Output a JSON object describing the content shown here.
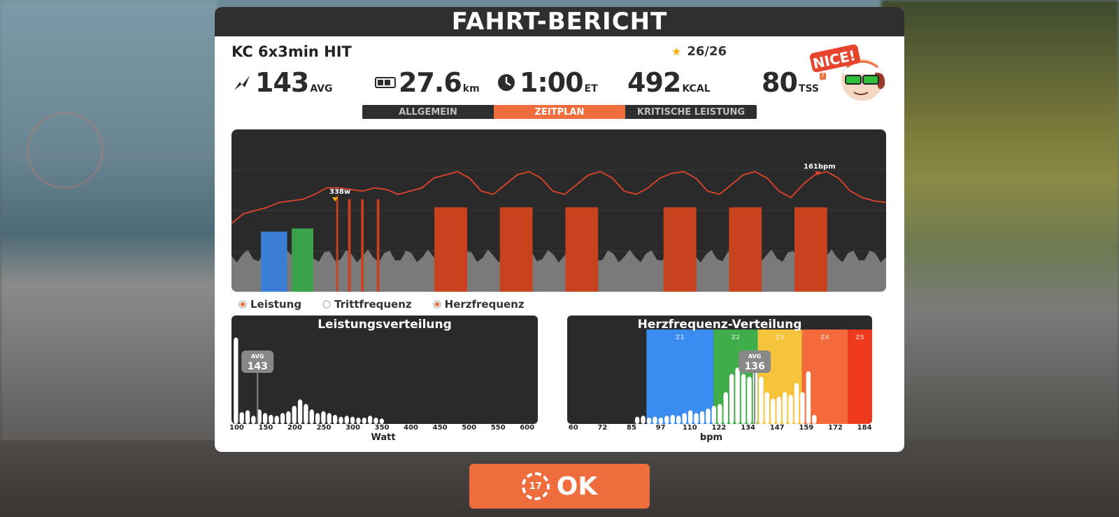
{
  "report": {
    "title": "FAHRT-BERICHT",
    "workout_name": "KC 6x3min HIT",
    "stars": "26/26",
    "badge_text": "NICE!"
  },
  "stats": {
    "power": {
      "value": "143",
      "unit": "AVG",
      "icon": "power-icon"
    },
    "distance": {
      "value": "27.6",
      "unit": "km",
      "icon": "odometer-icon"
    },
    "time": {
      "value": "1:00",
      "unit": "ET",
      "icon": "clock-icon"
    },
    "energy": {
      "value": "492",
      "unit": "KCAL"
    },
    "tss": {
      "value": "80",
      "unit": "TSS",
      "hint": "?"
    }
  },
  "tabs": [
    {
      "label": "ALLGEMEIN",
      "active": false
    },
    {
      "label": "ZEITPLAN",
      "active": true
    },
    {
      "label": "KRITISCHE LEISTUNG",
      "active": false
    }
  ],
  "legend": {
    "power": "Leistung",
    "cadence": "Trittfrequenz",
    "heartrate": "Herzfrequenz"
  },
  "chart_data": [
    {
      "type": "area",
      "peak_power_label": "338w",
      "peak_hr_label": "161bpm",
      "intervals": [
        {
          "start": 0.045,
          "end": 0.085,
          "color": "#3a7fd5",
          "level": 0.25
        },
        {
          "start": 0.092,
          "end": 0.125,
          "color": "#3aa34a",
          "level": 0.27
        },
        {
          "start": 0.16,
          "end": 0.163,
          "color": "#c8421e",
          "level": 0.47
        },
        {
          "start": 0.178,
          "end": 0.182,
          "color": "#c8421e",
          "level": 0.45
        },
        {
          "start": 0.198,
          "end": 0.202,
          "color": "#c8421e",
          "level": 0.45
        },
        {
          "start": 0.222,
          "end": 0.226,
          "color": "#c8421e",
          "level": 0.45
        },
        {
          "start": 0.31,
          "end": 0.36,
          "color": "#c8421e",
          "level": 0.4
        },
        {
          "start": 0.41,
          "end": 0.46,
          "color": "#c8421e",
          "level": 0.4
        },
        {
          "start": 0.51,
          "end": 0.56,
          "color": "#c8421e",
          "level": 0.4
        },
        {
          "start": 0.66,
          "end": 0.71,
          "color": "#c8421e",
          "level": 0.4
        },
        {
          "start": 0.76,
          "end": 0.81,
          "color": "#c8421e",
          "level": 0.4
        },
        {
          "start": 0.86,
          "end": 0.91,
          "color": "#c8421e",
          "level": 0.4
        }
      ],
      "hr_curve": [
        0.58,
        0.52,
        0.5,
        0.48,
        0.45,
        0.44,
        0.43,
        0.4,
        0.36,
        0.36,
        0.37,
        0.38,
        0.36,
        0.37,
        0.4,
        0.38,
        0.36,
        0.3,
        0.28,
        0.26,
        0.3,
        0.38,
        0.4,
        0.34,
        0.28,
        0.26,
        0.3,
        0.38,
        0.4,
        0.34,
        0.28,
        0.26,
        0.3,
        0.38,
        0.4,
        0.36,
        0.3,
        0.27,
        0.26,
        0.3,
        0.38,
        0.4,
        0.34,
        0.28,
        0.26,
        0.3,
        0.38,
        0.42,
        0.34,
        0.28,
        0.26,
        0.3,
        0.38,
        0.42,
        0.44,
        0.45
      ]
    },
    {
      "type": "bar",
      "title": "Leistungsverteilung",
      "xlabel": "Watt",
      "ticks": [
        "100",
        "150",
        "200",
        "250",
        "300",
        "350",
        "400",
        "450",
        "500",
        "550",
        "600"
      ],
      "avg_label": "AVG",
      "avg_value": "143",
      "bars": [
        0.95,
        0.13,
        0.15,
        0.09,
        0.16,
        0.12,
        0.1,
        0.09,
        0.12,
        0.14,
        0.2,
        0.27,
        0.22,
        0.16,
        0.12,
        0.14,
        0.12,
        0.1,
        0.08,
        0.09,
        0.08,
        0.07,
        0.07,
        0.09,
        0.07,
        0.06
      ]
    },
    {
      "type": "bar",
      "title": "Herzfrequenz-Verteilung",
      "xlabel": "bpm",
      "ticks": [
        "60",
        "72",
        "85",
        "97",
        "110",
        "122",
        "134",
        "147",
        "159",
        "172",
        "184"
      ],
      "avg_label": "AVG",
      "avg_value": "136",
      "zones": [
        {
          "label": "Z1",
          "color": "#3a8cf0"
        },
        {
          "label": "Z2",
          "color": "#3fae4a"
        },
        {
          "label": "Z3",
          "color": "#f6c43a"
        },
        {
          "label": "Z4",
          "color": "#f46a3a"
        },
        {
          "label": "Z5",
          "color": "#f03a20"
        }
      ],
      "bars": [
        0.08,
        0.09,
        0.07,
        0.08,
        0.07,
        0.09,
        0.1,
        0.09,
        0.12,
        0.15,
        0.12,
        0.14,
        0.17,
        0.2,
        0.22,
        0.35,
        0.55,
        0.62,
        0.55,
        0.52,
        0.58,
        0.52,
        0.35,
        0.28,
        0.3,
        0.35,
        0.32,
        0.45,
        0.35,
        0.58,
        0.1
      ]
    }
  ],
  "ok_button": {
    "label": "OK",
    "countdown": "17"
  }
}
